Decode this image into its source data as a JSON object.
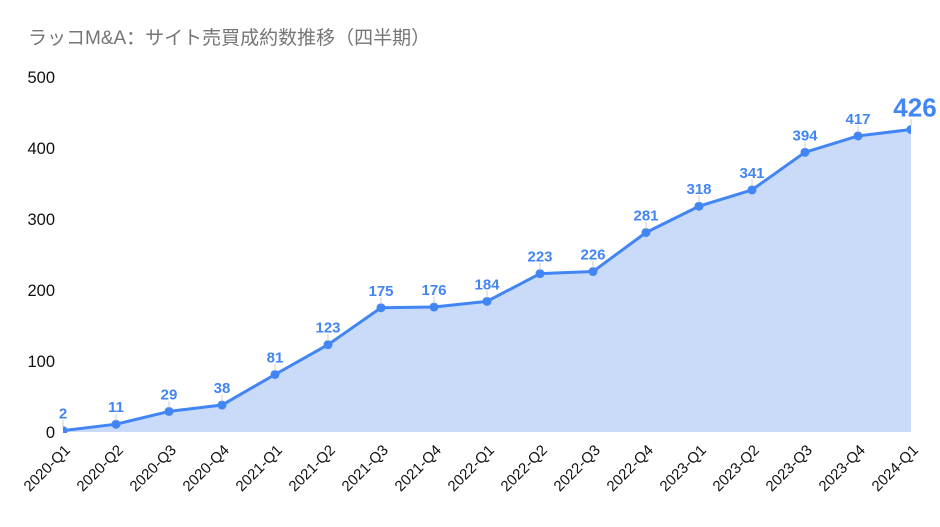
{
  "chart": {
    "title": "ラッコM&A：サイト売買成約数推移（四半期）"
  },
  "chart_data": {
    "type": "area",
    "title": "ラッコM&A：サイト売買成約数推移（四半期）",
    "categories": [
      "2020-Q1",
      "2020-Q2",
      "2020-Q3",
      "2020-Q4",
      "2021-Q1",
      "2021-Q2",
      "2021-Q3",
      "2021-Q4",
      "2022-Q1",
      "2022-Q2",
      "2022-Q3",
      "2022-Q4",
      "2023-Q1",
      "2023-Q2",
      "2023-Q3",
      "2023-Q4",
      "2024-Q1"
    ],
    "values": [
      2,
      11,
      29,
      38,
      81,
      123,
      175,
      176,
      184,
      223,
      226,
      281,
      318,
      341,
      394,
      417,
      426
    ],
    "xlabel": "",
    "ylabel": "",
    "ylim": [
      0,
      500
    ],
    "yticks": [
      0,
      100,
      200,
      300,
      400,
      500
    ],
    "grid": false,
    "legend_position": "none",
    "data_labels_shown": true,
    "last_value_emphasized": true,
    "colors": {
      "line": "#4285f4",
      "area_fill": "#c9dbf8",
      "point": "#4285f4",
      "data_label": "#4285f4",
      "leader_line": "#cccccc",
      "axis_text": "#111111",
      "title_text": "#757575"
    }
  }
}
